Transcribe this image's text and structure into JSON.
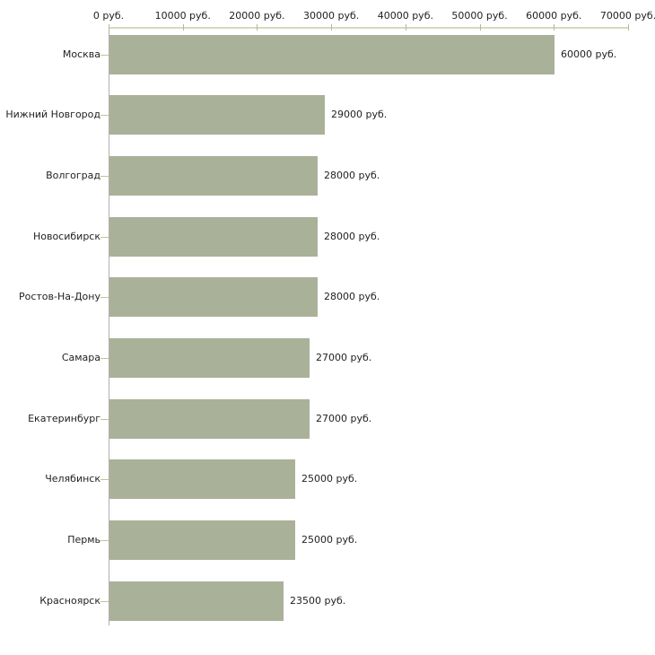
{
  "chart_data": {
    "type": "bar",
    "orientation": "horizontal",
    "categories": [
      "Москва",
      "Нижний Новгород",
      "Волгоград",
      "Новосибирск",
      "Ростов-На-Дону",
      "Самара",
      "Екатеринбург",
      "Челябинск",
      "Пермь",
      "Красноярск"
    ],
    "values": [
      60000,
      29000,
      28000,
      28000,
      28000,
      27000,
      27000,
      25000,
      25000,
      23500
    ],
    "value_labels": [
      "60000 руб.",
      "29000 руб.",
      "28000 руб.",
      "28000 руб.",
      "28000 руб.",
      "27000 руб.",
      "27000 руб.",
      "25000 руб.",
      "25000 руб.",
      "23500 руб."
    ],
    "x_axis": {
      "position": "top",
      "min": 0,
      "max": 70000,
      "ticks": [
        0,
        10000,
        20000,
        30000,
        40000,
        50000,
        60000,
        70000
      ],
      "tick_labels": [
        "0 руб.",
        "10000 руб.",
        "20000 руб.",
        "30000 руб.",
        "40000 руб.",
        "50000 руб.",
        "60000 руб.",
        "70000 руб."
      ]
    },
    "grid": false,
    "legend": false,
    "colors": {
      "bar": "#aab199",
      "x_axis_line": "#d8d8bc",
      "x_tick": "#b9b98f",
      "y_axis_line": "#b0b0b0",
      "y_tick": "#c3c39c",
      "text": "#222222",
      "background": "#ffffff"
    }
  }
}
